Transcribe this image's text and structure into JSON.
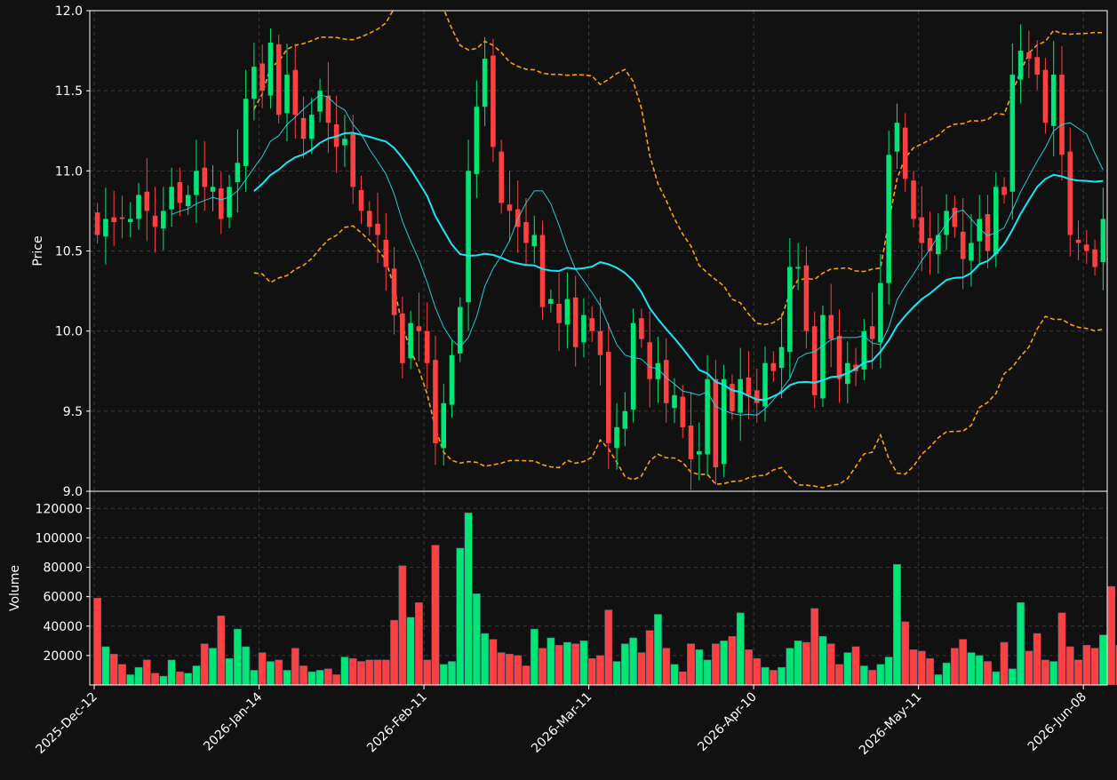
{
  "chart_data": [
    {
      "panel": "price",
      "type": "candlestick",
      "ylabel": "Price",
      "ylim": [
        9.0,
        12.0
      ],
      "yticks": [
        9.0,
        9.5,
        10.0,
        10.5,
        11.0,
        11.5,
        12.0
      ],
      "grid": true,
      "colors": {
        "up": "#00e676",
        "down": "#ff4040",
        "sma_fast": "#1ee0e8",
        "sma_slow": "#19e6f4",
        "bands": "#ffa000"
      },
      "overlays": [
        "SMA (fast)",
        "SMA (slow)",
        "Bollinger upper",
        "Bollinger lower"
      ],
      "x_labels": [
        "2025-Dec-12",
        "2026-Jan-14",
        "2026-Feb-11",
        "2026-Mar-11",
        "2026-Apr-10",
        "2026-May-11",
        "2026-Jun-08"
      ],
      "x_label_index": [
        0,
        20,
        40,
        60,
        80,
        100,
        120
      ],
      "closes_approx": [
        10.6,
        10.7,
        10.68,
        10.7,
        10.7,
        10.85,
        10.75,
        10.65,
        10.75,
        10.9,
        10.8,
        10.85,
        11.0,
        10.9,
        10.9,
        10.7,
        10.9,
        11.05,
        11.45,
        11.65,
        11.5,
        11.8,
        11.35,
        11.6,
        11.35,
        11.2,
        11.35,
        11.5,
        11.3,
        11.15,
        11.2,
        10.9,
        10.75,
        10.65,
        10.6,
        10.4,
        10.1,
        9.8,
        10.05,
        10.0,
        9.8,
        9.3,
        9.55,
        9.85,
        10.15,
        11.0,
        11.4,
        11.7,
        11.15,
        10.8,
        10.75,
        10.65,
        10.55,
        10.6,
        10.15,
        10.2,
        10.05,
        10.2,
        9.9,
        10.1,
        10.0,
        9.85,
        9.3,
        9.4,
        9.5,
        10.05,
        9.95,
        9.7,
        9.8,
        9.55,
        9.6,
        9.4,
        9.2,
        9.25,
        9.7,
        9.15,
        9.7,
        9.5,
        9.7,
        9.6,
        9.55,
        9.8,
        9.75,
        9.9,
        10.4,
        10.4,
        10.0,
        9.6,
        10.1,
        9.95,
        9.7,
        9.8,
        9.75,
        10.0,
        9.95,
        10.3,
        11.1,
        11.3,
        10.95,
        10.7,
        10.55,
        10.5,
        10.6,
        10.75,
        10.65,
        10.45,
        10.55,
        10.7,
        10.5,
        10.9,
        10.85,
        11.6,
        11.75,
        11.7,
        11.6,
        11.3,
        11.6,
        11.1,
        10.6,
        10.55,
        10.5,
        10.4,
        10.7
      ],
      "volume_ylabel": "Volume",
      "volume_yticks": [
        20000,
        40000,
        60000,
        80000,
        100000,
        120000
      ],
      "volume_approx": [
        59000,
        26000,
        21000,
        14000,
        7000,
        12000,
        17000,
        8000,
        6000,
        17000,
        9000,
        8000,
        13000,
        28000,
        25000,
        47000,
        18000,
        38000,
        26000,
        10000,
        22000,
        16000,
        17000,
        10000,
        25000,
        13000,
        9000,
        10000,
        11000,
        7000,
        19000,
        18000,
        16000,
        17000,
        17000,
        17000,
        44000,
        81000,
        46000,
        56000,
        17000,
        95000,
        14000,
        16000,
        93000,
        117000,
        62000,
        35000,
        31000,
        22000,
        21000,
        20000,
        13000,
        38000,
        25000,
        32000,
        27000,
        29000,
        28000,
        30000,
        18000,
        20000,
        51000,
        16000,
        28000,
        32000,
        22000,
        37000,
        48000,
        25000,
        14000,
        9000,
        28000,
        24000,
        17000,
        28000,
        30000,
        33000,
        49000,
        24000,
        18000,
        12000,
        10000,
        12000,
        25000,
        30000,
        29000,
        52000,
        33000,
        28000,
        14000,
        22000,
        26000,
        13000,
        10000,
        14000,
        19000,
        82000,
        43000,
        24000,
        23000,
        18000,
        7000,
        15000,
        25000,
        31000,
        22000,
        20000,
        16000,
        9000,
        29000,
        11000,
        56000,
        23000,
        35000,
        17000,
        16000,
        49000,
        26000,
        17000,
        27000,
        25000,
        34000,
        67000,
        27000
      ]
    }
  ]
}
